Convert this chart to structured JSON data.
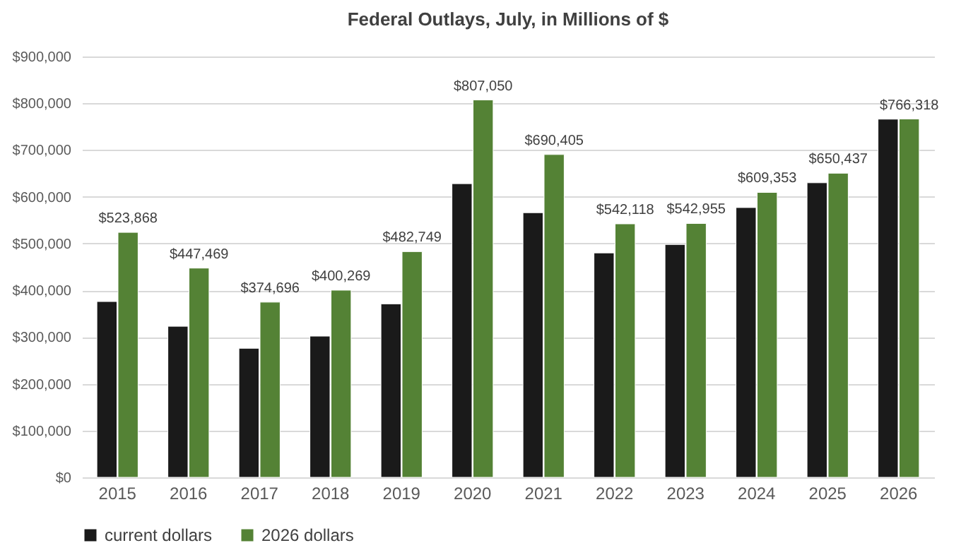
{
  "chart_data": {
    "type": "bar",
    "title": "Federal Outlays, July, in Millions of $",
    "categories": [
      "2015",
      "2016",
      "2017",
      "2018",
      "2019",
      "2020",
      "2021",
      "2022",
      "2023",
      "2024",
      "2025",
      "2026"
    ],
    "series": [
      {
        "name": "current dollars",
        "color": "#1a1a1a",
        "values": [
          376000,
          323000,
          276000,
          302000,
          371000,
          628000,
          566000,
          480000,
          498000,
          577000,
          630000,
          766000
        ]
      },
      {
        "name": "2026 dollars",
        "color": "#548235",
        "values": [
          523868,
          447469,
          374696,
          400269,
          482749,
          807050,
          690405,
          542118,
          542955,
          609353,
          650437,
          766318
        ],
        "value_labels": [
          "$523,868",
          "$447,469",
          "$374,696",
          "$400,269",
          "$482,749",
          "$807,050",
          "$690,405",
          "$542,118",
          "$542,955",
          "$609,353",
          "$650,437",
          "$766,318"
        ]
      }
    ],
    "ylim": [
      0,
      900000
    ],
    "yticks": [
      {
        "value": 0,
        "label": "$0"
      },
      {
        "value": 100000,
        "label": "$100,000"
      },
      {
        "value": 200000,
        "label": "$200,000"
      },
      {
        "value": 300000,
        "label": "$300,000"
      },
      {
        "value": 400000,
        "label": "$400,000"
      },
      {
        "value": 500000,
        "label": "$500,000"
      },
      {
        "value": 600000,
        "label": "$600,000"
      },
      {
        "value": 700000,
        "label": "$700,000"
      },
      {
        "value": 800000,
        "label": "$800,000"
      },
      {
        "value": 900000,
        "label": "$900,000"
      }
    ],
    "grid": "y",
    "legend": "bottom"
  }
}
